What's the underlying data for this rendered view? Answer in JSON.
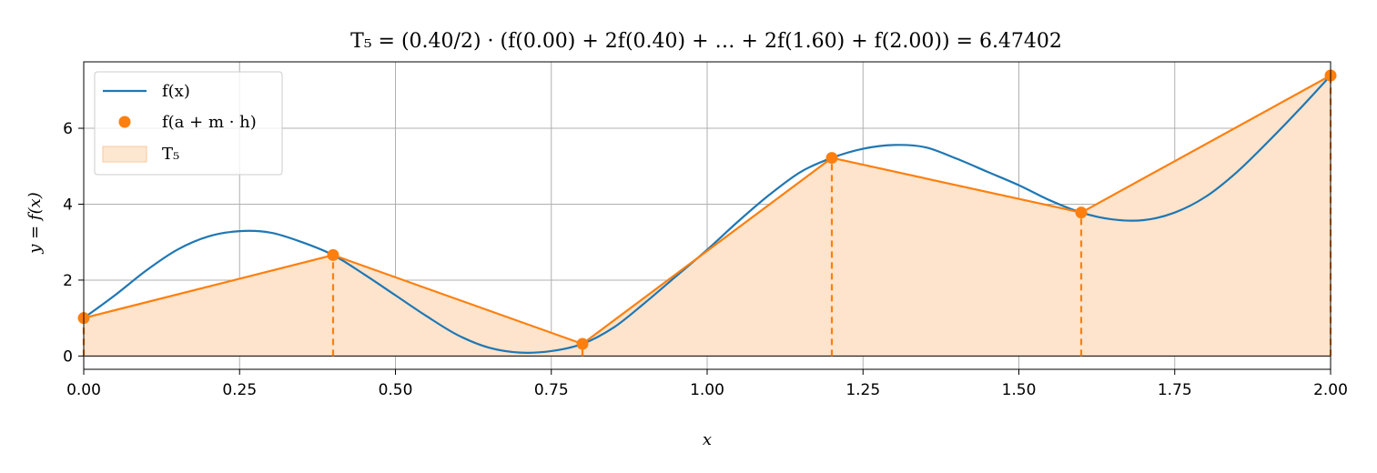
{
  "chart_data": {
    "type": "line",
    "title": "T₅ = (0.40/2) · (f(0.00) + 2f(0.40) + … + 2f(1.60) + f(2.00)) = 6.47402",
    "xlabel": "x",
    "ylabel": "y = f(x)",
    "xlim": [
      0.0,
      2.0
    ],
    "ylim": [
      -0.35,
      7.75
    ],
    "xticks": [
      0.0,
      0.25,
      0.5,
      0.75,
      1.0,
      1.25,
      1.5,
      1.75,
      2.0
    ],
    "xtick_labels": [
      "0.00",
      "0.25",
      "0.50",
      "0.75",
      "1.00",
      "1.25",
      "1.50",
      "1.75",
      "2.00"
    ],
    "yticks": [
      0,
      2,
      4,
      6
    ],
    "ytick_labels": [
      "0",
      "2",
      "4",
      "6"
    ],
    "grid": true,
    "legend_position": "top-left",
    "series": [
      {
        "name": "f(x)",
        "kind": "line",
        "color": "#1f77b4",
        "x": [
          0.0,
          0.05,
          0.1,
          0.15,
          0.2,
          0.25,
          0.3,
          0.35,
          0.4,
          0.45,
          0.5,
          0.55,
          0.6,
          0.65,
          0.7,
          0.75,
          0.8,
          0.85,
          0.9,
          0.95,
          1.0,
          1.05,
          1.1,
          1.15,
          1.2,
          1.25,
          1.3,
          1.35,
          1.4,
          1.45,
          1.5,
          1.55,
          1.6,
          1.65,
          1.7,
          1.75,
          1.8,
          1.85,
          1.9,
          1.95,
          2.0
        ],
        "y": [
          1.0,
          1.6,
          2.25,
          2.8,
          3.15,
          3.29,
          3.25,
          3.0,
          2.66,
          2.15,
          1.6,
          1.05,
          0.55,
          0.22,
          0.09,
          0.13,
          0.32,
          0.75,
          1.4,
          2.1,
          2.8,
          3.55,
          4.25,
          4.85,
          5.22,
          5.46,
          5.56,
          5.5,
          5.2,
          4.85,
          4.5,
          4.1,
          3.78,
          3.6,
          3.58,
          3.78,
          4.2,
          4.85,
          5.65,
          6.5,
          7.39
        ]
      },
      {
        "name": "f(a + m · h)",
        "kind": "points",
        "color": "#ff7f0e",
        "x": [
          0.0,
          0.4,
          0.8,
          1.2,
          1.6,
          2.0
        ],
        "y": [
          1.0,
          2.66,
          0.32,
          5.22,
          3.78,
          7.39
        ]
      },
      {
        "name": "T₅",
        "kind": "area",
        "color": "#ff7f0e",
        "fill": "#fee4cc",
        "x": [
          0.0,
          0.4,
          0.8,
          1.2,
          1.6,
          2.0
        ],
        "y": [
          1.0,
          2.66,
          0.32,
          5.22,
          3.78,
          7.39
        ]
      }
    ]
  }
}
